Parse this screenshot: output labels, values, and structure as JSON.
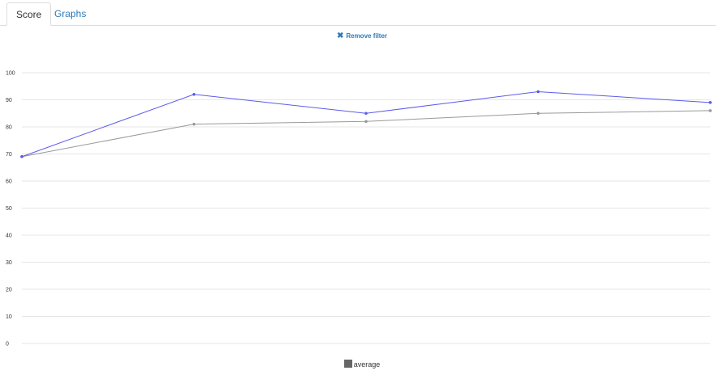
{
  "tabs": [
    {
      "label": "Score",
      "active": true
    },
    {
      "label": "Graphs",
      "active": false
    }
  ],
  "filter": {
    "remove_label": "Remove filter"
  },
  "chart_data": {
    "type": "line",
    "title": "",
    "xlabel": "",
    "ylabel": "",
    "ylim": [
      0,
      100
    ],
    "yticks": [
      0,
      10,
      20,
      30,
      40,
      50,
      60,
      70,
      80,
      90,
      100
    ],
    "grid": true,
    "legend_position": "bottom",
    "x": [
      1,
      2,
      3,
      4,
      5
    ],
    "series": [
      {
        "values": [
          69,
          92,
          85,
          93,
          89
        ],
        "color": "#5b5bea"
      },
      {
        "name": "average",
        "values": [
          69,
          81,
          82,
          85,
          86
        ],
        "color": "#999999"
      }
    ]
  },
  "legend": {
    "label": "average",
    "color": "#666666"
  }
}
